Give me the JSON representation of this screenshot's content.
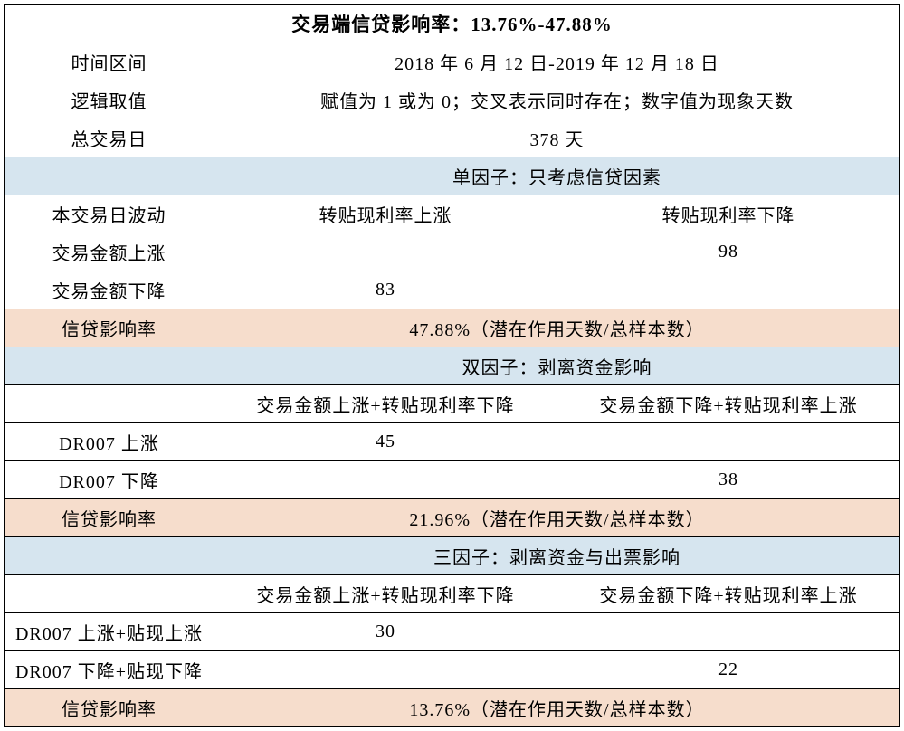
{
  "table": {
    "colors": {
      "section_header_bg": "#d6e5ef",
      "result_row_bg": "#f6ddcc",
      "border_color": "#000000",
      "text_color": "#000000",
      "background": "#ffffff"
    },
    "typography": {
      "font_family": "SimSun",
      "cell_fontsize": 20,
      "title_fontsize": 21,
      "title_weight": "bold"
    },
    "title": "交易端信贷影响率：13.76%-47.88%",
    "rows": {
      "time_range": {
        "label": "时间区间",
        "value": "2018 年 6 月 12 日-2019 年 12 月 18 日"
      },
      "logic_value": {
        "label": "逻辑取值",
        "value": "赋值为 1 或为 0；交叉表示同时存在；数字值为现象天数"
      },
      "total_days": {
        "label": "总交易日",
        "value": "378 天"
      },
      "section1": {
        "header": "单因子：只考虑信贷因素",
        "row_header": {
          "label": "本交易日波动",
          "col1": "转贴现利率上涨",
          "col2": "转贴现利率下降"
        },
        "data1": {
          "label": "交易金额上涨",
          "col1": "",
          "col2": "98"
        },
        "data2": {
          "label": "交易金额下降",
          "col1": "83",
          "col2": ""
        },
        "result": {
          "label": "信贷影响率",
          "value": "47.88%（潜在作用天数/总样本数）"
        }
      },
      "section2": {
        "header": "双因子：剥离资金影响",
        "row_header": {
          "label": "",
          "col1": "交易金额上涨+转贴现利率下降",
          "col2": "交易金额下降+转贴现利率上涨"
        },
        "data1": {
          "label": "DR007 上涨",
          "col1": "45",
          "col2": ""
        },
        "data2": {
          "label": "DR007 下降",
          "col1": "",
          "col2": "38"
        },
        "result": {
          "label": "信贷影响率",
          "value": "21.96%（潜在作用天数/总样本数）"
        }
      },
      "section3": {
        "header": "三因子：剥离资金与出票影响",
        "row_header": {
          "label": "",
          "col1": "交易金额上涨+转贴现利率下降",
          "col2": "交易金额下降+转贴现利率上涨"
        },
        "data1": {
          "label": "DR007 上涨+贴现上涨",
          "col1": "30",
          "col2": ""
        },
        "data2": {
          "label": "DR007 下降+贴现下降",
          "col1": "",
          "col2": "22"
        },
        "result": {
          "label": "信贷影响率",
          "value": "13.76%（潜在作用天数/总样本数）"
        }
      }
    }
  }
}
